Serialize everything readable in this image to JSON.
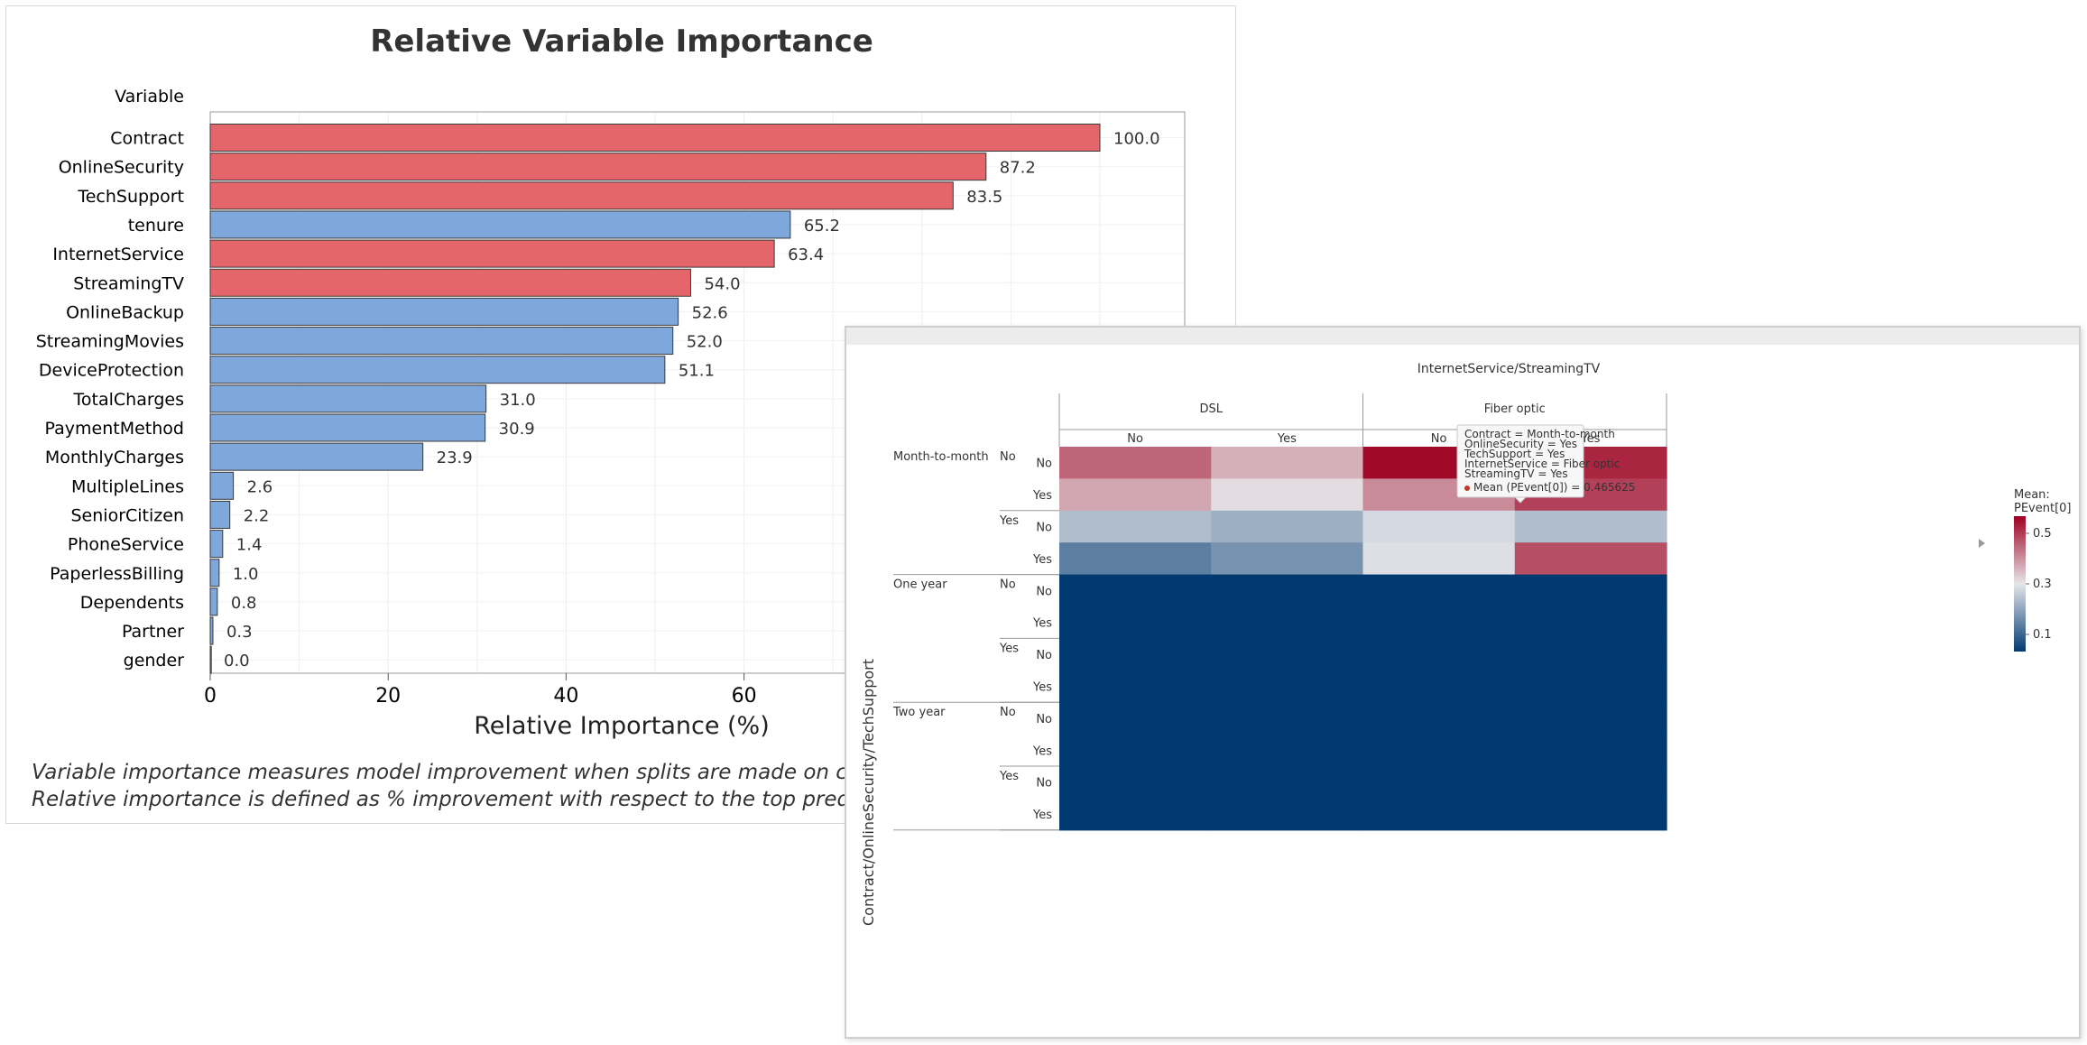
{
  "chart_data": [
    {
      "type": "bar",
      "orientation": "horizontal",
      "title": "Relative Variable Importance",
      "ylabel": "Variable",
      "xlabel": "Relative Importance (%)",
      "xlim": [
        0,
        100
      ],
      "xticks": [
        "0",
        "20",
        "40",
        "60"
      ],
      "grid": true,
      "colors": {
        "red": "#e4666a",
        "blue": "#7ea7db",
        "edge": "#3a3a3a"
      },
      "categories": [
        "Contract",
        "OnlineSecurity",
        "TechSupport",
        "tenure",
        "InternetService",
        "StreamingTV",
        "OnlineBackup",
        "StreamingMovies",
        "DeviceProtection",
        "TotalCharges",
        "PaymentMethod",
        "MonthlyCharges",
        "MultipleLines",
        "SeniorCitizen",
        "PhoneService",
        "PaperlessBilling",
        "Dependents",
        "Partner",
        "gender"
      ],
      "values": [
        100.0,
        87.2,
        83.5,
        65.2,
        63.4,
        54.0,
        52.6,
        52.0,
        51.1,
        31.0,
        30.9,
        23.9,
        2.6,
        2.2,
        1.4,
        1.0,
        0.8,
        0.3,
        0.0
      ],
      "value_labels": [
        "100.0",
        "87.2",
        "83.5",
        "65.2",
        "63.4",
        "54.0",
        "52.6",
        "52.0",
        "51.1",
        "31.0",
        "30.9",
        "23.9",
        "2.6",
        "2.2",
        "1.4",
        "1.0",
        "0.8",
        "0.3",
        "0.0"
      ],
      "bar_colors": [
        "red",
        "red",
        "red",
        "blue",
        "red",
        "red",
        "blue",
        "blue",
        "blue",
        "blue",
        "blue",
        "blue",
        "blue",
        "blue",
        "blue",
        "blue",
        "blue",
        "blue",
        "blue"
      ],
      "notes": [
        "Variable importance measures model improvement when splits are made on c",
        "Relative importance is defined as % improvement with respect to the top predi"
      ]
    },
    {
      "type": "heatmap",
      "x_title": "InternetService/StreamingTV",
      "y_title": "Contract/OnlineSecurity/TechSupport",
      "x_groups": [
        {
          "name": "DSL",
          "levels": [
            "No",
            "Yes"
          ]
        },
        {
          "name": "Fiber optic",
          "levels": [
            "No",
            "Yes"
          ]
        }
      ],
      "y_groups": [
        {
          "contract": "Month-to-month",
          "security": [
            {
              "name": "No",
              "support": [
                "No",
                "Yes"
              ]
            },
            {
              "name": "Yes",
              "support": [
                "No",
                "Yes"
              ]
            }
          ]
        },
        {
          "contract": "One year",
          "security": [
            {
              "name": "No",
              "support": [
                "No",
                "Yes"
              ]
            },
            {
              "name": "Yes",
              "support": [
                "No",
                "Yes"
              ]
            }
          ]
        },
        {
          "contract": "Two year",
          "security": [
            {
              "name": "No",
              "support": [
                "No",
                "Yes"
              ]
            },
            {
              "name": "Yes",
              "support": [
                "No",
                "Yes"
              ]
            }
          ]
        }
      ],
      "values": [
        [
          0.44,
          0.36,
          0.54,
          0.51
        ],
        [
          0.37,
          0.31,
          0.4,
          0.48
        ],
        [
          0.24,
          0.22,
          0.28,
          0.24
        ],
        [
          0.15,
          0.18,
          0.29,
          0.465625
        ],
        [
          0.05,
          0.05,
          0.05,
          0.05
        ],
        [
          0.05,
          0.05,
          0.05,
          0.05
        ],
        [
          0.05,
          0.05,
          0.05,
          0.05
        ],
        [
          0.05,
          0.05,
          0.05,
          0.05
        ],
        [
          0.05,
          0.05,
          0.05,
          0.05
        ],
        [
          0.05,
          0.05,
          0.05,
          0.05
        ],
        [
          0.05,
          0.05,
          0.05,
          0.05
        ],
        [
          0.05,
          0.05,
          0.05,
          0.05
        ]
      ],
      "color_scale": {
        "min": 0.05,
        "max": 0.55,
        "low": "#003a70",
        "mid": "#e6e6ea",
        "high": "#9e0020"
      },
      "legend": {
        "title_lines": [
          "Mean:",
          "PEvent[0]"
        ],
        "ticks": [
          0.5,
          0.3,
          0.1
        ],
        "tick_labels": [
          "0.5",
          "0.3",
          "0.1"
        ],
        "placement": "right"
      },
      "tooltip": {
        "lines": [
          "Contract = Month-to-month",
          "OnlineSecurity = Yes",
          "TechSupport = Yes",
          "InternetService = Fiber optic",
          "StreamingTV = Yes"
        ],
        "mean_line": "Mean (PEvent[0]) = 0.465625",
        "marker_color": "#c0392b"
      }
    }
  ]
}
